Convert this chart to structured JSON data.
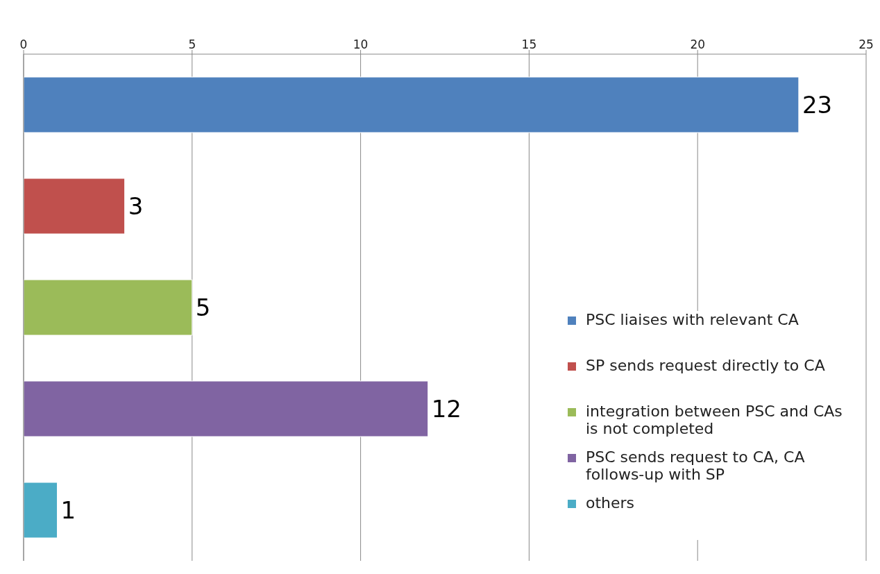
{
  "chart_data": {
    "type": "bar",
    "orientation": "horizontal",
    "stacked": true,
    "categories": [
      null,
      null,
      null,
      null,
      null
    ],
    "series": [
      {
        "name": "PSC liaises with relevant CA",
        "color": "#4f81bd",
        "values": [
          23,
          null,
          null,
          null,
          null
        ]
      },
      {
        "name": "SP sends request directly to CA",
        "color": "#c0504d",
        "values": [
          null,
          3,
          null,
          null,
          null
        ]
      },
      {
        "name": "integration between PSC and CAs is not completed",
        "color": "#9bbb59",
        "values": [
          null,
          null,
          5,
          null,
          null
        ]
      },
      {
        "name": "PSC sends request to CA, CA follows-up with SP",
        "color": "#8064a2",
        "values": [
          null,
          null,
          null,
          12,
          null
        ]
      },
      {
        "name": "others",
        "color": "#4bacc6",
        "values": [
          null,
          null,
          null,
          null,
          1
        ]
      }
    ],
    "xlim": [
      0,
      25
    ],
    "xticks": [
      0,
      5,
      10,
      15,
      20,
      25
    ],
    "grid": "x",
    "legend": "bottom right",
    "data_labels": true
  }
}
